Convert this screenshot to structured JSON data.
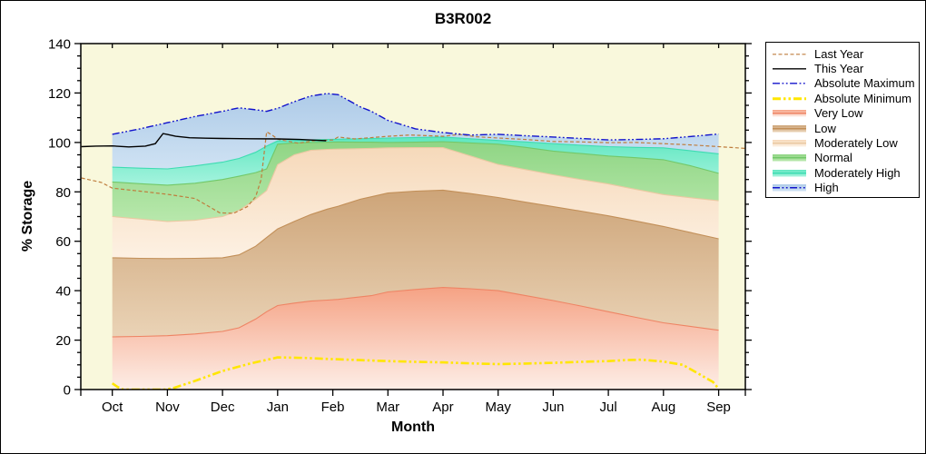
{
  "figure": {
    "title": "B3R002",
    "x_axis_title": "Month",
    "y_axis_title": "% Storage"
  },
  "axes": {
    "y_ticks": [
      0,
      20,
      40,
      60,
      80,
      100,
      120,
      140
    ],
    "y_minor_step": 5,
    "y_range": [
      0,
      140
    ],
    "months": [
      "Oct",
      "Nov",
      "Dec",
      "Jan",
      "Feb",
      "Mar",
      "Apr",
      "May",
      "Jun",
      "Jul",
      "Aug",
      "Sep"
    ]
  },
  "colors": {
    "plot_background": "#f9f8dc",
    "axis": "#000000",
    "last_year": "#bf7d3d",
    "this_year": "#000000",
    "absolute_maximum": "#1212cc",
    "absolute_minimum": "#ffe600"
  },
  "legend": {
    "entries": [
      {
        "label": "Last Year",
        "type": "line",
        "color": "#bf7d3d",
        "dash": "4 2.5",
        "width": 1.2
      },
      {
        "label": "This Year",
        "type": "line",
        "color": "#000000",
        "dash": "",
        "width": 1.4
      },
      {
        "label": "Absolute Maximum",
        "type": "line",
        "color": "#1212cc",
        "dash": "8 2.5 1.8 2.5 1.8 2.5",
        "width": 1.4
      },
      {
        "label": "Absolute Minimum",
        "type": "line",
        "color": "#ffe600",
        "dash": "9 3 2.5 3 2.5 3",
        "width": 3
      },
      {
        "label": "Very Low",
        "type": "band",
        "top": "#f5a284",
        "bottom": "#fdeee7",
        "edge": "#ee8464"
      },
      {
        "label": "Low",
        "type": "band",
        "top": "#cda478",
        "bottom": "#ead3b6",
        "edge": "#c28f58"
      },
      {
        "label": "Moderately Low",
        "type": "band",
        "top": "#f6d9ba",
        "bottom": "#fdf1e3",
        "edge": "#eac9a2"
      },
      {
        "label": "Normal",
        "type": "band",
        "top": "#8fd584",
        "bottom": "#b8e8ac",
        "edge": "#72c869"
      },
      {
        "label": "Moderately High",
        "type": "band",
        "top": "#5fe7c0",
        "bottom": "#a5f3de",
        "edge": "#3edcb2"
      },
      {
        "label": "High",
        "type": "band_line",
        "top": "#aecbe8",
        "bottom": "#cfe2f3",
        "edge": "#1212cc",
        "dash": "8 2.5 1.8 2.5 1.8 2.5"
      }
    ]
  },
  "chart_data": {
    "type": "area",
    "title": "B3R002",
    "xlabel": "Month",
    "ylabel": "% Storage",
    "ylim": [
      0,
      140
    ],
    "x_categories": [
      "Oct",
      "Nov",
      "Dec",
      "Jan",
      "Feb",
      "Mar",
      "Apr",
      "May",
      "Jun",
      "Jul",
      "Aug",
      "Sep"
    ],
    "x_note": "x values are month indices, 0 = Oct ... 11 = Sep",
    "bands": {
      "stack_order": [
        "Very Low",
        "Low",
        "Moderately Low",
        "Normal",
        "Moderately High",
        "High"
      ],
      "x": [
        0,
        0.5,
        1,
        1.5,
        2,
        2.3,
        2.6,
        2.8,
        3,
        3.3,
        3.6,
        3.9,
        4.1,
        4.5,
        4.7,
        5,
        5.5,
        6,
        6.5,
        7,
        7.5,
        8,
        8.5,
        9,
        9.5,
        10,
        10.5,
        11
      ],
      "base": 0,
      "very_low_top": [
        21.3,
        21.5,
        21.8,
        22.5,
        23.5,
        25,
        28.5,
        31.5,
        34,
        35,
        35.8,
        36.2,
        36.5,
        37.5,
        38,
        39.5,
        40.5,
        41.3,
        40.8,
        40,
        38,
        36,
        33.8,
        31.5,
        29.2,
        27,
        25.5,
        24
      ],
      "low_top": [
        53.3,
        53.1,
        53,
        53.1,
        53.3,
        54.5,
        58,
        61.5,
        65,
        68,
        70.8,
        73,
        74.2,
        77,
        78,
        79.5,
        80.3,
        80.7,
        79.3,
        77.7,
        75.8,
        74,
        72.2,
        70.3,
        68.2,
        66,
        63.5,
        61
      ],
      "mod_low_top": [
        70,
        69,
        68,
        68.5,
        70,
        72.5,
        77,
        80.5,
        91,
        95,
        96.8,
        97.2,
        97.3,
        97.5,
        97.6,
        97.8,
        97.9,
        97.9,
        94.5,
        91.1,
        89,
        86.9,
        85,
        83.2,
        81,
        78.9,
        77.6,
        76.4
      ],
      "normal_top": [
        84,
        83.3,
        82.7,
        83.5,
        85,
        86.3,
        87.8,
        89.3,
        99.3,
        99.8,
        100,
        100.1,
        100.2,
        100.1,
        100.1,
        100,
        100.1,
        100.3,
        99.8,
        99.3,
        98,
        96.5,
        95.5,
        94.5,
        93.8,
        93,
        90.5,
        87.5
      ],
      "mod_high_top": [
        90,
        89.6,
        89.3,
        90.5,
        92,
        93.5,
        96,
        98.5,
        100.6,
        100.8,
        101,
        101.2,
        101.3,
        101.5,
        101.6,
        101.8,
        102,
        102.2,
        101.5,
        100.8,
        100.2,
        99.5,
        98.9,
        98.3,
        98,
        97.8,
        96.6,
        95.4
      ],
      "high_top": [
        103.3,
        105.5,
        108,
        110.5,
        112.6,
        114,
        113.2,
        112.6,
        113.8,
        116.5,
        118.8,
        119.8,
        119.3,
        114.4,
        112.6,
        108.9,
        105.5,
        104,
        103,
        103.3,
        102.7,
        102.2,
        101.6,
        101,
        101.2,
        101.5,
        102.4,
        103.4
      ]
    },
    "series": [
      {
        "name": "Absolute Maximum",
        "x": [
          0,
          0.5,
          1,
          1.5,
          2,
          2.3,
          2.6,
          2.8,
          3,
          3.3,
          3.6,
          3.9,
          4.1,
          4.5,
          4.7,
          5,
          5.5,
          6,
          6.5,
          7,
          7.5,
          8,
          8.5,
          9,
          9.5,
          10,
          10.5,
          11
        ],
        "y": [
          103.3,
          105.5,
          108,
          110.5,
          112.6,
          114,
          113.2,
          112.6,
          113.8,
          116.5,
          118.8,
          119.8,
          119.3,
          114.4,
          112.6,
          108.9,
          105.5,
          104,
          103,
          103.3,
          102.7,
          102.2,
          101.6,
          101,
          101.2,
          101.5,
          102.4,
          103.4
        ]
      },
      {
        "name": "Absolute Minimum",
        "x": [
          0,
          0.1,
          0.2,
          0.95,
          1.1,
          1.5,
          2,
          2.5,
          3,
          3.5,
          4,
          4.5,
          5,
          5.5,
          6,
          6.5,
          7,
          7.5,
          8,
          8.5,
          9,
          9.3,
          9.6,
          10,
          10.35,
          10.62,
          10.9,
          11
        ],
        "y": [
          2.5,
          1,
          0,
          0,
          0.5,
          3.5,
          7.5,
          10.5,
          13,
          12.8,
          12.3,
          11.9,
          11.5,
          11.2,
          11,
          10.6,
          10.3,
          10.5,
          10.8,
          11.2,
          11.5,
          11.9,
          12.1,
          11.3,
          10,
          6.6,
          3,
          0.3
        ]
      },
      {
        "name": "This Year",
        "x": [
          -0.56,
          -0.3,
          0,
          0.3,
          0.6,
          0.78,
          0.92,
          1,
          1.15,
          1.4,
          1.7,
          2,
          2.5,
          3,
          3.4,
          3.88
        ],
        "y": [
          98.3,
          98.5,
          98.6,
          98.2,
          98.5,
          99.5,
          103.6,
          103.2,
          102.5,
          101.9,
          101.7,
          101.6,
          101.5,
          101.4,
          101.2,
          100.7
        ]
      },
      {
        "name": "Last Year",
        "x": [
          -0.56,
          -0.2,
          0,
          0.5,
          1,
          1.5,
          1.95,
          2.2,
          2.45,
          2.6,
          2.7,
          2.8,
          2.9,
          3,
          3.37,
          3.7,
          4,
          4.1,
          4.4,
          5,
          5.4,
          6,
          6.3,
          6.6,
          7,
          7.5,
          8,
          8.5,
          9,
          9.5,
          10,
          10.5,
          11,
          11.48
        ],
        "y": [
          85.6,
          83.8,
          81.5,
          80.3,
          79,
          77.3,
          71.5,
          71.3,
          74,
          78,
          85,
          104.3,
          103,
          101.3,
          99.7,
          100.8,
          101,
          102.2,
          101.4,
          102.5,
          103,
          102.5,
          103.2,
          102.3,
          101.8,
          101.2,
          100.4,
          100.2,
          99.9,
          100,
          99.5,
          99,
          98.3,
          97.6
        ]
      }
    ]
  }
}
